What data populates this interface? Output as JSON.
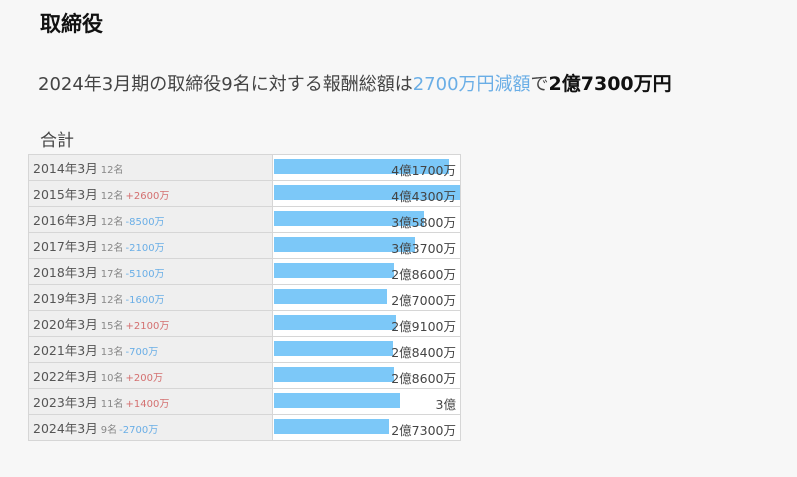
{
  "title": "取締役",
  "summary": {
    "prefix": "2024年3月期の取締役9名に対する報酬総額は",
    "change": "2700万円減額",
    "suffix": "で",
    "total": "2億7300万円"
  },
  "section_label": "合計",
  "colors": {
    "bar": "#7cc8f8",
    "increase": "#d47070",
    "decrease": "#6aaee6"
  },
  "chart_data": {
    "type": "bar",
    "orientation": "horizontal",
    "unit": "万円",
    "categories": [
      "2014年3月",
      "2015年3月",
      "2016年3月",
      "2017年3月",
      "2018年3月",
      "2019年3月",
      "2020年3月",
      "2021年3月",
      "2022年3月",
      "2023年3月",
      "2024年3月"
    ],
    "values": [
      41700,
      44300,
      35800,
      33700,
      28600,
      27000,
      29100,
      28400,
      28600,
      30000,
      27300
    ],
    "value_labels": [
      "4億1700万",
      "4億4300万",
      "3億5800万",
      "3億3700万",
      "2億8600万",
      "2億7000万",
      "2億9100万",
      "2億8400万",
      "2億8600万",
      "3億",
      "2億7300万"
    ],
    "counts": [
      "12名",
      "12名",
      "12名",
      "12名",
      "17名",
      "12名",
      "15名",
      "13名",
      "10名",
      "11名",
      "9名"
    ],
    "deltas": [
      "",
      "+2600万",
      "-8500万",
      "-2100万",
      "-5100万",
      "-1600万",
      "+2100万",
      "-700万",
      "+200万",
      "+1400万",
      "-2700万"
    ],
    "xlim": [
      0,
      44300
    ]
  }
}
